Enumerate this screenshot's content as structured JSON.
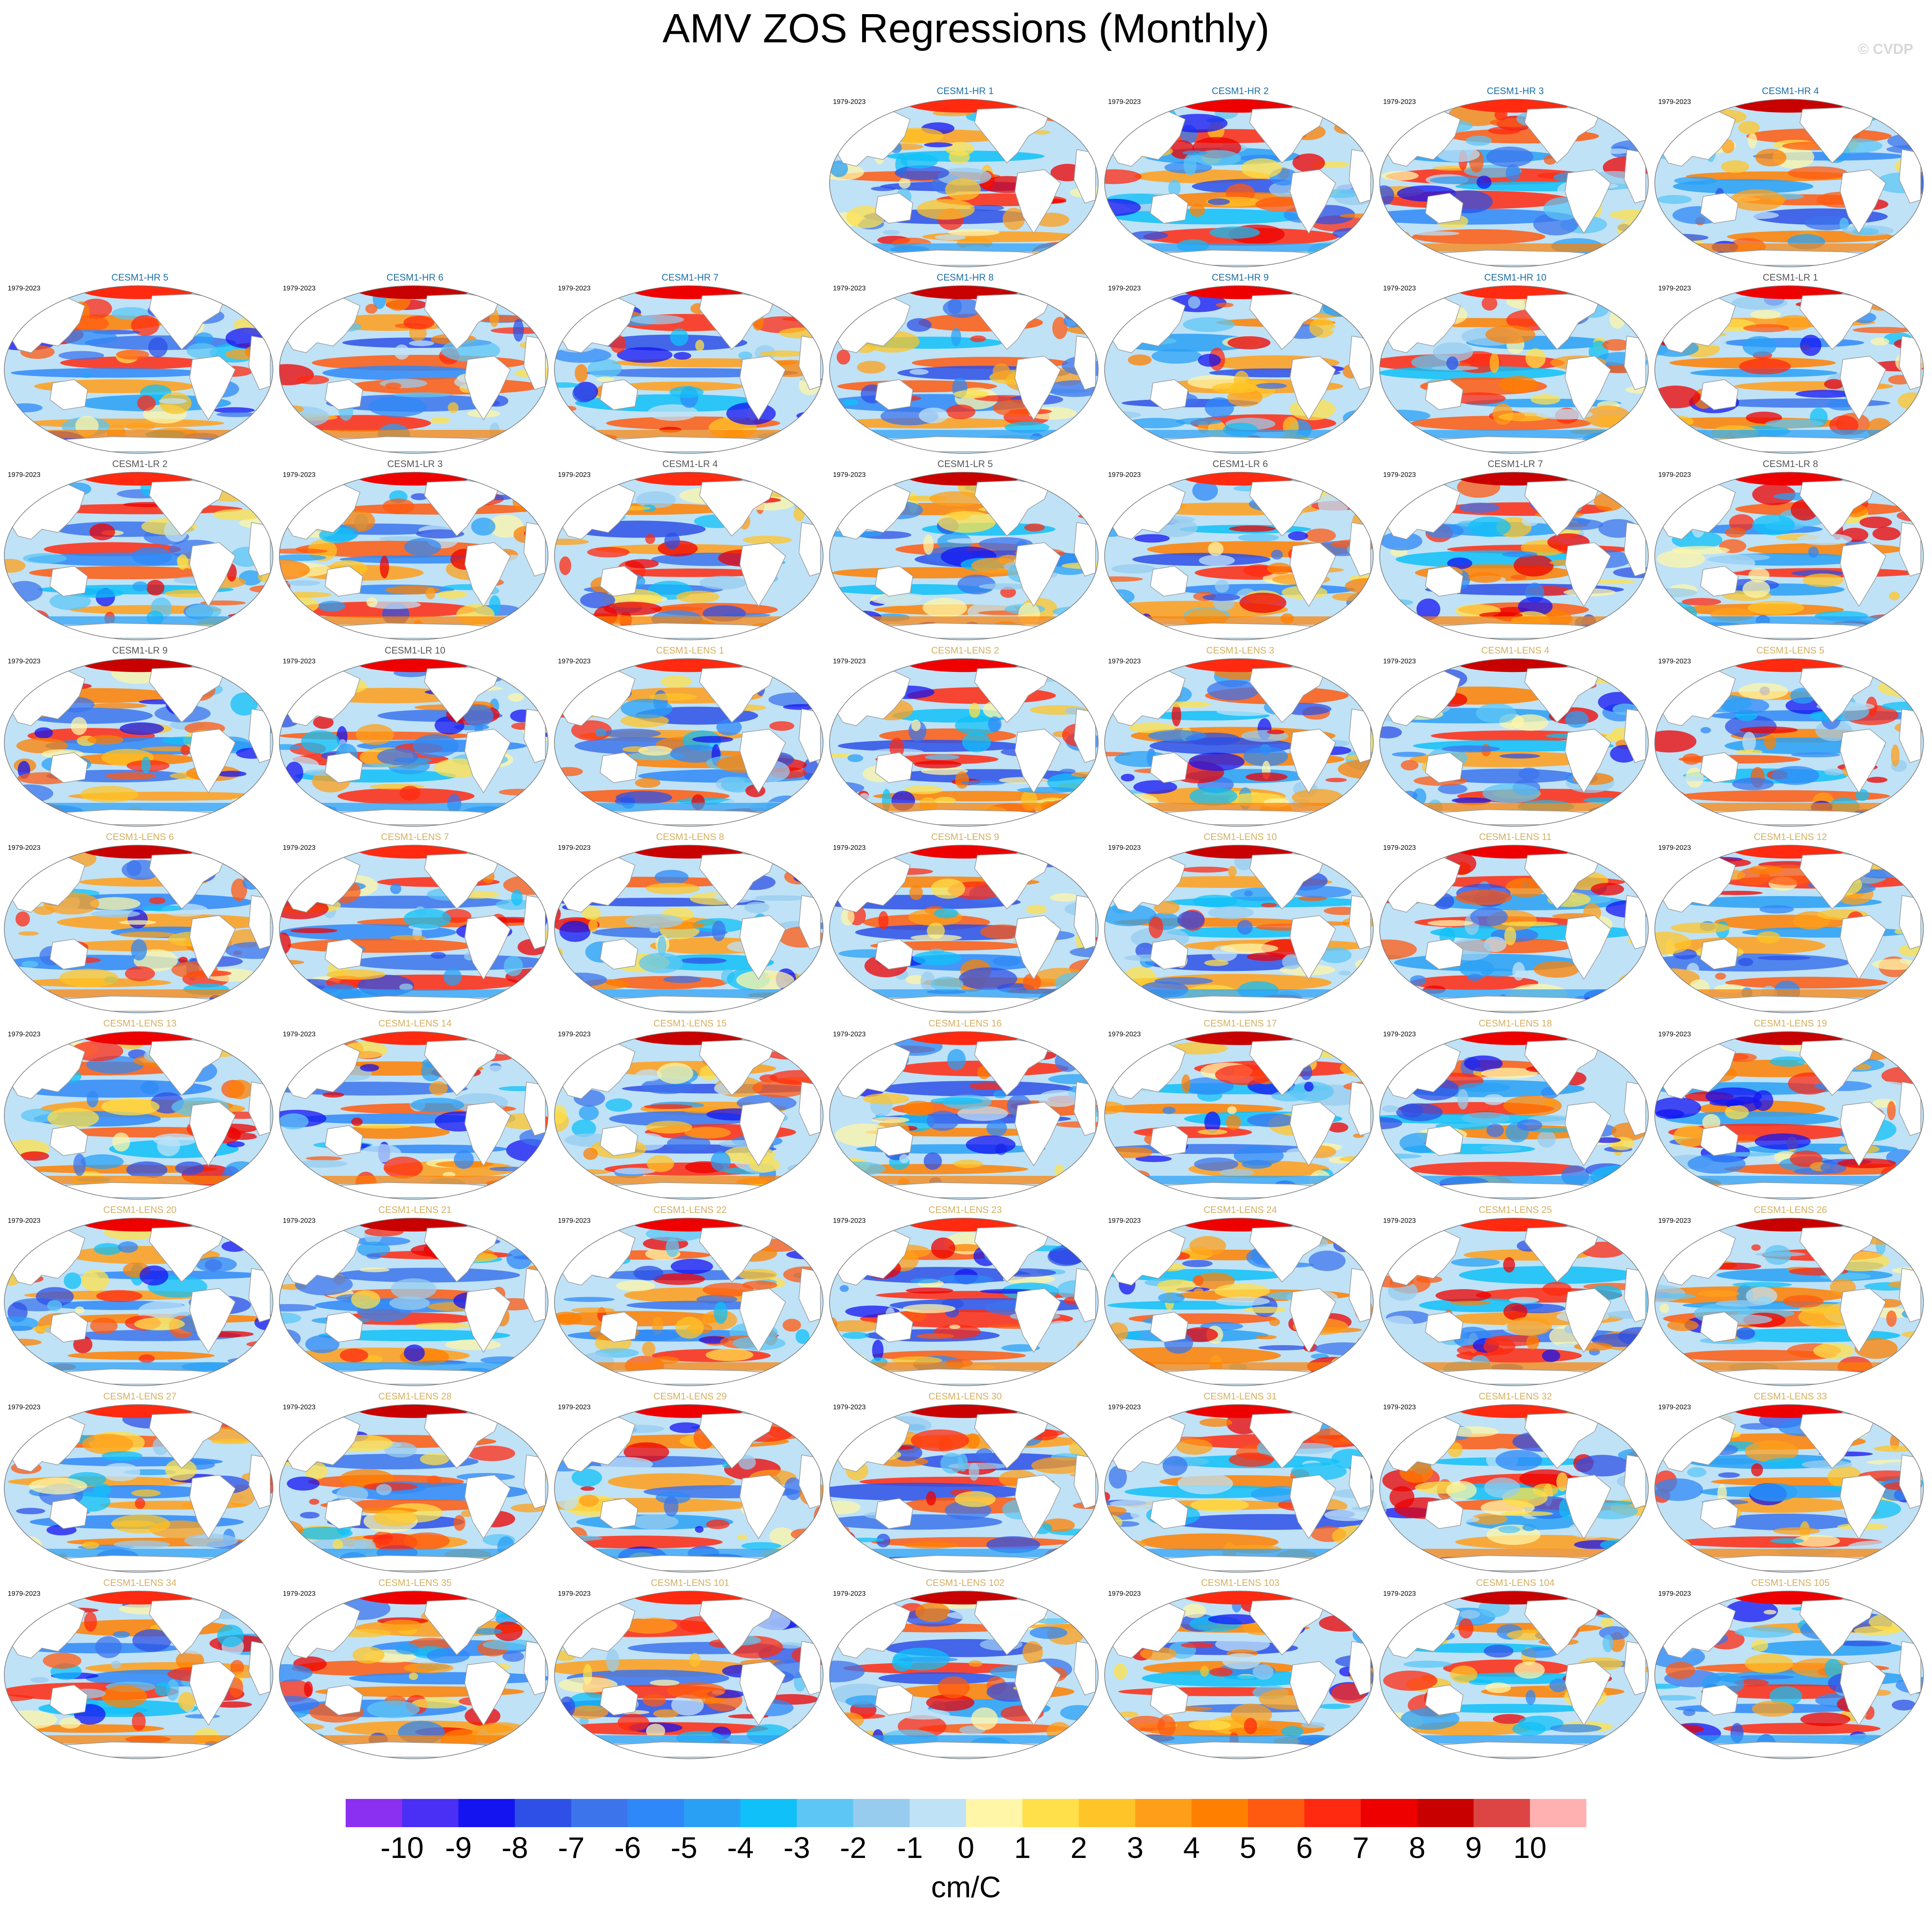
{
  "header": {
    "title": "AMV ZOS Regressions (Monthly)",
    "credit": "© CVDP"
  },
  "colors": {
    "hr_title": "#1a6fa8",
    "lr_title": "#555555",
    "lens_title": "#d4b060"
  },
  "chart_data": {
    "type": "heatmap",
    "title": "AMV ZOS Regressions (Monthly)",
    "units": "cm/C",
    "period": "1979-2023",
    "projection": "Robinson (global, Pacific-centered)",
    "colorbar": {
      "ticks": [
        "-10",
        "-9",
        "-8",
        "-7",
        "-6",
        "-5",
        "-4",
        "-3",
        "-2",
        "-1",
        "0",
        "1",
        "2",
        "3",
        "4",
        "5",
        "6",
        "7",
        "8",
        "9",
        "10"
      ],
      "colors": [
        "#8b2ff0",
        "#4a2ff5",
        "#1414f0",
        "#2e50e6",
        "#3c74ec",
        "#2f88f7",
        "#2aa0f5",
        "#10c0f8",
        "#5ec6f4",
        "#98ccef",
        "#bfe2f7",
        "#fff6a8",
        "#ffe04a",
        "#ffc427",
        "#ff9f19",
        "#ff8000",
        "#ff5a10",
        "#ff2a10",
        "#ee0000",
        "#c80000",
        "#dd4444",
        "#ffb0b0"
      ]
    },
    "panels": [
      {
        "name": "CESM1-HR 1",
        "years": "1979-2023",
        "group": "hr"
      },
      {
        "name": "CESM1-HR 2",
        "years": "1979-2023",
        "group": "hr"
      },
      {
        "name": "CESM1-HR 3",
        "years": "1979-2023",
        "group": "hr"
      },
      {
        "name": "CESM1-HR 4",
        "years": "1979-2023",
        "group": "hr"
      },
      {
        "name": "CESM1-HR 5",
        "years": "1979-2023",
        "group": "hr"
      },
      {
        "name": "CESM1-HR 6",
        "years": "1979-2023",
        "group": "hr"
      },
      {
        "name": "CESM1-HR 7",
        "years": "1979-2023",
        "group": "hr"
      },
      {
        "name": "CESM1-HR 8",
        "years": "1979-2023",
        "group": "hr"
      },
      {
        "name": "CESM1-HR 9",
        "years": "1979-2023",
        "group": "hr"
      },
      {
        "name": "CESM1-HR 10",
        "years": "1979-2023",
        "group": "hr"
      },
      {
        "name": "CESM1-LR 1",
        "years": "1979-2023",
        "group": "lr"
      },
      {
        "name": "CESM1-LR 2",
        "years": "1979-2023",
        "group": "lr"
      },
      {
        "name": "CESM1-LR 3",
        "years": "1979-2023",
        "group": "lr"
      },
      {
        "name": "CESM1-LR 4",
        "years": "1979-2023",
        "group": "lr"
      },
      {
        "name": "CESM1-LR 5",
        "years": "1979-2023",
        "group": "lr"
      },
      {
        "name": "CESM1-LR 6",
        "years": "1979-2023",
        "group": "lr"
      },
      {
        "name": "CESM1-LR 7",
        "years": "1979-2023",
        "group": "lr"
      },
      {
        "name": "CESM1-LR 8",
        "years": "1979-2023",
        "group": "lr"
      },
      {
        "name": "CESM1-LR 9",
        "years": "1979-2023",
        "group": "lr"
      },
      {
        "name": "CESM1-LR 10",
        "years": "1979-2023",
        "group": "lr"
      },
      {
        "name": "CESM1-LENS 1",
        "years": "1979-2023",
        "group": "lens"
      },
      {
        "name": "CESM1-LENS 2",
        "years": "1979-2023",
        "group": "lens"
      },
      {
        "name": "CESM1-LENS 3",
        "years": "1979-2023",
        "group": "lens"
      },
      {
        "name": "CESM1-LENS 4",
        "years": "1979-2023",
        "group": "lens"
      },
      {
        "name": "CESM1-LENS 5",
        "years": "1979-2023",
        "group": "lens"
      },
      {
        "name": "CESM1-LENS 6",
        "years": "1979-2023",
        "group": "lens"
      },
      {
        "name": "CESM1-LENS 7",
        "years": "1979-2023",
        "group": "lens"
      },
      {
        "name": "CESM1-LENS 8",
        "years": "1979-2023",
        "group": "lens"
      },
      {
        "name": "CESM1-LENS 9",
        "years": "1979-2023",
        "group": "lens"
      },
      {
        "name": "CESM1-LENS 10",
        "years": "1979-2023",
        "group": "lens"
      },
      {
        "name": "CESM1-LENS 11",
        "years": "1979-2023",
        "group": "lens"
      },
      {
        "name": "CESM1-LENS 12",
        "years": "1979-2023",
        "group": "lens"
      },
      {
        "name": "CESM1-LENS 13",
        "years": "1979-2023",
        "group": "lens"
      },
      {
        "name": "CESM1-LENS 14",
        "years": "1979-2023",
        "group": "lens"
      },
      {
        "name": "CESM1-LENS 15",
        "years": "1979-2023",
        "group": "lens"
      },
      {
        "name": "CESM1-LENS 16",
        "years": "1979-2023",
        "group": "lens"
      },
      {
        "name": "CESM1-LENS 17",
        "years": "1979-2023",
        "group": "lens"
      },
      {
        "name": "CESM1-LENS 18",
        "years": "1979-2023",
        "group": "lens"
      },
      {
        "name": "CESM1-LENS 19",
        "years": "1979-2023",
        "group": "lens"
      },
      {
        "name": "CESM1-LENS 20",
        "years": "1979-2023",
        "group": "lens"
      },
      {
        "name": "CESM1-LENS 21",
        "years": "1979-2023",
        "group": "lens"
      },
      {
        "name": "CESM1-LENS 22",
        "years": "1979-2023",
        "group": "lens"
      },
      {
        "name": "CESM1-LENS 23",
        "years": "1979-2023",
        "group": "lens"
      },
      {
        "name": "CESM1-LENS 24",
        "years": "1979-2023",
        "group": "lens"
      },
      {
        "name": "CESM1-LENS 25",
        "years": "1979-2023",
        "group": "lens"
      },
      {
        "name": "CESM1-LENS 26",
        "years": "1979-2023",
        "group": "lens"
      },
      {
        "name": "CESM1-LENS 27",
        "years": "1979-2023",
        "group": "lens"
      },
      {
        "name": "CESM1-LENS 28",
        "years": "1979-2023",
        "group": "lens"
      },
      {
        "name": "CESM1-LENS 29",
        "years": "1979-2023",
        "group": "lens"
      },
      {
        "name": "CESM1-LENS 30",
        "years": "1979-2023",
        "group": "lens"
      },
      {
        "name": "CESM1-LENS 31",
        "years": "1979-2023",
        "group": "lens"
      },
      {
        "name": "CESM1-LENS 32",
        "years": "1979-2023",
        "group": "lens"
      },
      {
        "name": "CESM1-LENS 33",
        "years": "1979-2023",
        "group": "lens"
      },
      {
        "name": "CESM1-LENS 34",
        "years": "1979-2023",
        "group": "lens"
      },
      {
        "name": "CESM1-LENS 35",
        "years": "1979-2023",
        "group": "lens"
      },
      {
        "name": "CESM1-LENS 101",
        "years": "1979-2023",
        "group": "lens"
      },
      {
        "name": "CESM1-LENS 102",
        "years": "1979-2023",
        "group": "lens"
      },
      {
        "name": "CESM1-LENS 103",
        "years": "1979-2023",
        "group": "lens"
      },
      {
        "name": "CESM1-LENS 104",
        "years": "1979-2023",
        "group": "lens"
      },
      {
        "name": "CESM1-LENS 105",
        "years": "1979-2023",
        "group": "lens"
      }
    ]
  }
}
